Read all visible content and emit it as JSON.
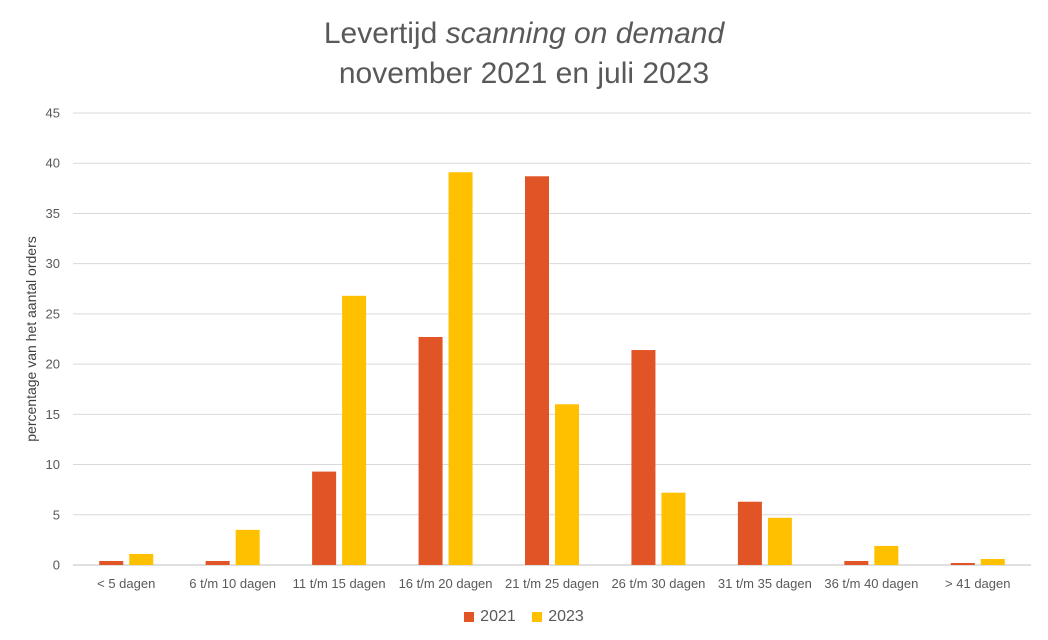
{
  "chart_data": {
    "type": "bar",
    "title_line1_prefix": "Levertijd ",
    "title_line1_italic": "scanning on demand",
    "title_line2": "november 2021 en juli 2023",
    "ylabel": "percentage van het aantal orders",
    "xlabel": "",
    "ylim": [
      0,
      45
    ],
    "yticks": [
      0,
      5,
      10,
      15,
      20,
      25,
      30,
      35,
      40,
      45
    ],
    "grid": true,
    "legend_position": "bottom",
    "categories": [
      "< 5 dagen",
      "6 t/m 10 dagen",
      "11 t/m 15 dagen",
      "16 t/m 20 dagen",
      "21 t/m 25 dagen",
      "26 t/m 30 dagen",
      "31 t/m 35 dagen",
      "36 t/m 40 dagen",
      "> 41 dagen"
    ],
    "series": [
      {
        "name": "2021",
        "color": "#E05426",
        "values": [
          0.4,
          0.4,
          9.3,
          22.7,
          38.7,
          21.4,
          6.3,
          0.4,
          0.2
        ]
      },
      {
        "name": "2023",
        "color": "#FFC000",
        "values": [
          1.1,
          3.5,
          26.8,
          39.1,
          16.0,
          7.2,
          4.7,
          1.9,
          0.6
        ]
      }
    ]
  }
}
